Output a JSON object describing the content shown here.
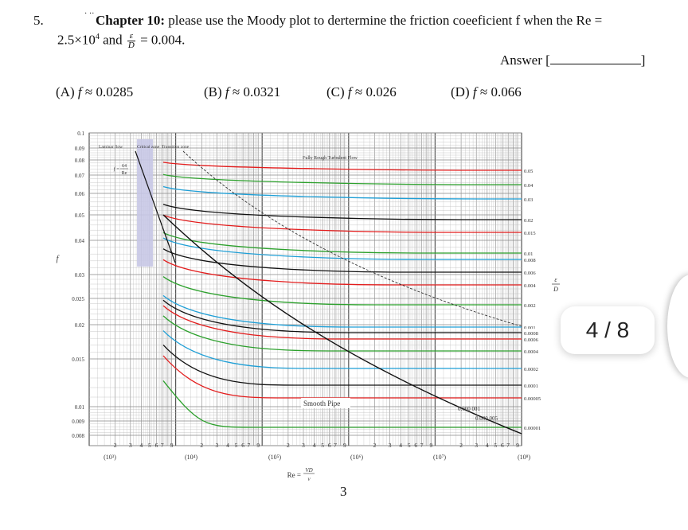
{
  "question": {
    "number": "5.",
    "marks": "·   ··",
    "chapter": "Chapter 10:",
    "text": "please use the Moody plot to dertermine the friction coeeficient f when the Re =",
    "line2_re": "2.5×10",
    "line2_exp": "4",
    "line2_and": "and",
    "frac_num": "ε",
    "frac_den": "D",
    "line2_value": "= 0.004."
  },
  "answer": {
    "label": "Answer [",
    "close": "]"
  },
  "options": [
    {
      "letter": "(A)",
      "value": "0.0285"
    },
    {
      "letter": "(B)",
      "value": "0.0321"
    },
    {
      "letter": "(C)",
      "value": "0.026"
    },
    {
      "letter": "(D)",
      "value": "0.066"
    }
  ],
  "option_symbol": "f",
  "option_approx": "≈",
  "chart": {
    "y_axis_label": "f",
    "y_ticks": [
      "0.1",
      "0.09",
      "0.08",
      "0.07",
      "0.06",
      "0.05",
      "0.04",
      "0.03",
      "0.025",
      "0.02",
      "0.015",
      "0.01",
      "0.009",
      "0.008"
    ],
    "right_labels": [
      "0.05",
      "0.04",
      "0.03",
      "0.02",
      "0.015",
      "0.01",
      "0.008",
      "0.006",
      "0.004",
      "0.002",
      "0.001",
      "0.0008",
      "0.0006",
      "0.0004",
      "0.0002",
      "0.0001",
      "0.00005",
      "0.00001"
    ],
    "right_axis_num": "ε",
    "right_axis_den": "D",
    "decades": [
      "(10³)",
      "(10⁴)",
      "(10⁵)",
      "(10⁶)",
      "(10⁷)",
      "(10⁸)"
    ],
    "minor_ticks": [
      "2",
      "3",
      "4",
      "5",
      "6",
      "7",
      "9"
    ],
    "laminar_label": "Laminar flow",
    "critical_label": "Critical zone",
    "transition_label": "Transition zone",
    "laminar_eq_num": "64",
    "laminar_eq_den": "Re",
    "laminar_eq_lhs": "f =",
    "turbulent_label": "Fully Rough Turbulent Flow",
    "smooth_label": "Smooth Pipe",
    "tiny_labels": [
      "0.000 001",
      "0.000 005"
    ],
    "re_label": "Re =",
    "re_num": "VD",
    "re_den": "ν",
    "colors": {
      "red": "#e31c1c",
      "green": "#2ca02c",
      "blue": "#1f9fd6",
      "black": "#111111",
      "grid": "#888888",
      "laminar_band": "#c8c8e6"
    }
  },
  "page": {
    "current": "4",
    "total": "8",
    "sep": "/"
  },
  "footer_number": "3"
}
